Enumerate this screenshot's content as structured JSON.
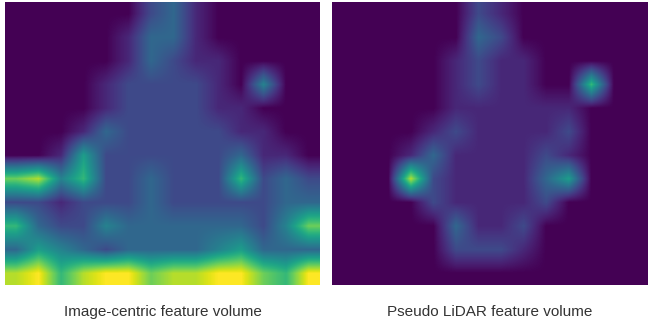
{
  "chart_data": [
    {
      "type": "heatmap",
      "caption": "Image-centric feature volume",
      "tick_labels": false,
      "color_range": [
        0,
        9
      ],
      "cells": [
        [
          0,
          0,
          0,
          0,
          0,
          0,
          2,
          3,
          1,
          0,
          0,
          0,
          0,
          0
        ],
        [
          0,
          0,
          0,
          0,
          0,
          1,
          3,
          3,
          1,
          0,
          0,
          0,
          0,
          0
        ],
        [
          0,
          0,
          0,
          0,
          0,
          1,
          3,
          2,
          1,
          1,
          0,
          0,
          0,
          0
        ],
        [
          0,
          0,
          0,
          0,
          1,
          2,
          2,
          2,
          2,
          1,
          0,
          4,
          0,
          0
        ],
        [
          0,
          0,
          0,
          0,
          1,
          2,
          2,
          2,
          2,
          1,
          1,
          0,
          0,
          0
        ],
        [
          0,
          0,
          0,
          1,
          3,
          2,
          2,
          2,
          2,
          2,
          1,
          1,
          0,
          0
        ],
        [
          0,
          0,
          1,
          5,
          2,
          2,
          2,
          2,
          2,
          2,
          3,
          1,
          1,
          0
        ],
        [
          7,
          8,
          4,
          6,
          2,
          2,
          3,
          2,
          2,
          2,
          6,
          2,
          3,
          2
        ],
        [
          2,
          2,
          1,
          2,
          2,
          2,
          3,
          2,
          2,
          2,
          2,
          2,
          3,
          3
        ],
        [
          6,
          3,
          2,
          2,
          4,
          3,
          3,
          3,
          3,
          3,
          3,
          2,
          4,
          7
        ],
        [
          3,
          5,
          4,
          3,
          2,
          3,
          3,
          3,
          3,
          4,
          5,
          3,
          3,
          3
        ],
        [
          8,
          9,
          6,
          8,
          9,
          9,
          7,
          8,
          8,
          9,
          9,
          7,
          6,
          9
        ]
      ]
    },
    {
      "type": "heatmap",
      "caption": "Pseudo LiDAR feature volume",
      "tick_labels": false,
      "color_range": [
        0,
        9
      ],
      "cells": [
        [
          0,
          0,
          0,
          0,
          0,
          0,
          2,
          1,
          0,
          0,
          0,
          0,
          0,
          0
        ],
        [
          0,
          0,
          0,
          0,
          0,
          0,
          3,
          2,
          0,
          0,
          0,
          0,
          0,
          0
        ],
        [
          0,
          0,
          0,
          0,
          0,
          1,
          2,
          1,
          1,
          0,
          0,
          0,
          0,
          0
        ],
        [
          0,
          0,
          0,
          0,
          0,
          1,
          2,
          1,
          1,
          0,
          0,
          6,
          0,
          0
        ],
        [
          0,
          0,
          0,
          0,
          0,
          1,
          1,
          1,
          1,
          1,
          1,
          0,
          0,
          0
        ],
        [
          0,
          0,
          0,
          0,
          1,
          2,
          1,
          1,
          1,
          1,
          2,
          0,
          0,
          0
        ],
        [
          0,
          0,
          0,
          1,
          3,
          1,
          1,
          1,
          1,
          2,
          1,
          0,
          0,
          0
        ],
        [
          0,
          0,
          0,
          8,
          2,
          1,
          1,
          1,
          1,
          3,
          5,
          0,
          0,
          0
        ],
        [
          0,
          0,
          0,
          0,
          2,
          1,
          1,
          1,
          1,
          2,
          0,
          0,
          0,
          0
        ],
        [
          0,
          0,
          0,
          0,
          0,
          3,
          1,
          1,
          2,
          0,
          0,
          0,
          0,
          0
        ],
        [
          0,
          0,
          0,
          0,
          0,
          2,
          2,
          2,
          1,
          0,
          0,
          0,
          0,
          0
        ],
        [
          0,
          0,
          0,
          0,
          0,
          0,
          0,
          0,
          0,
          0,
          0,
          0,
          0,
          0
        ]
      ]
    }
  ]
}
